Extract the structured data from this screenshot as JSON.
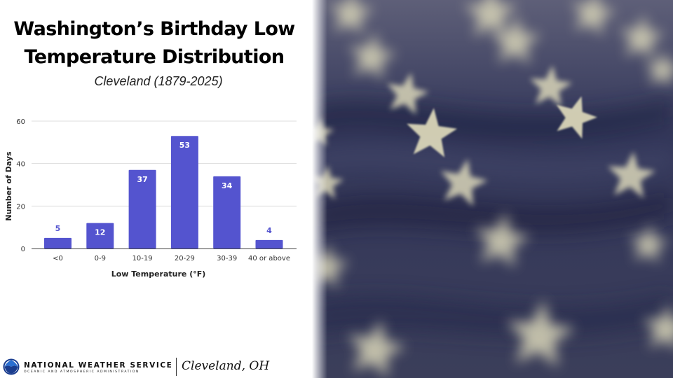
{
  "slide": {
    "title": "Washington’s Birthday Low Temperature Distribution",
    "subtitle": "Cleveland (1879-2025)"
  },
  "chart_data": {
    "type": "bar",
    "title": "",
    "xlabel": "Low Temperature (°F)",
    "ylabel": "Number of Days",
    "categories": [
      "<0",
      "0-9",
      "10-19",
      "20-29",
      "30-39",
      "40 or above"
    ],
    "values": [
      5,
      12,
      37,
      53,
      34,
      4
    ],
    "ylim": [
      0,
      60
    ],
    "yticks": [
      0,
      20,
      40,
      60
    ],
    "grid": true,
    "legend": "none",
    "bar_color": "#5454cf",
    "label_inside_color": "#ffffff",
    "label_outside_color": "#5454cf"
  },
  "footer": {
    "org_name": "NATIONAL WEATHER SERVICE",
    "org_sub": "OCEANIC AND ATMOSPHERIC ADMINISTRATION",
    "office": "Cleveland, OH",
    "logo_icon": "noaa-logo-icon"
  },
  "photo": {
    "icon": "american-flag-stars-photo",
    "colors": {
      "fabric": "#2f3454",
      "star": "#d9d5b8"
    }
  }
}
